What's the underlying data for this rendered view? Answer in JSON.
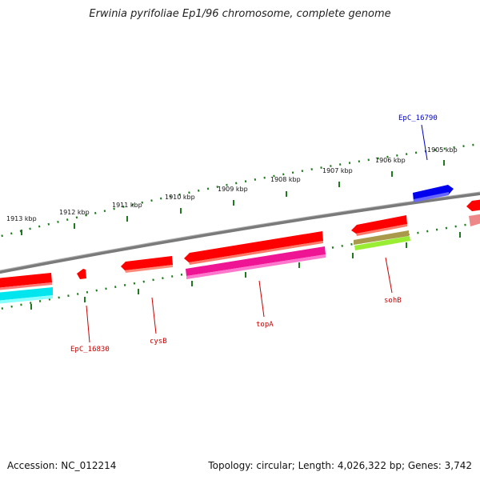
{
  "title": "Erwinia pyrifoliae Ep1/96 chromosome, complete genome",
  "footer": {
    "accession": "Accession: NC_012214",
    "topology": "Topology: circular; Length: 4,026,322 bp; Genes: 3,742"
  },
  "ticks": [
    {
      "label": "1913 kbp"
    },
    {
      "label": "1912 kbp"
    },
    {
      "label": "1911 kbp"
    },
    {
      "label": "1910 kbp"
    },
    {
      "label": "1909 kbp"
    },
    {
      "label": "1908 kbp"
    },
    {
      "label": "1907 kbp"
    },
    {
      "label": "1906 kbp"
    },
    {
      "label": "1905 kbp"
    }
  ],
  "gene_labels": [
    {
      "text": "EpC_16790",
      "color": "#0000cc"
    },
    {
      "text": "EpC_16830",
      "color": "#cc0000"
    },
    {
      "text": "cysB",
      "color": "#cc0000"
    },
    {
      "text": "topA",
      "color": "#cc0000"
    },
    {
      "text": "sohB",
      "color": "#cc0000"
    }
  ],
  "colors": {
    "backbone": "#808080",
    "tick": "#1f7a1f",
    "gene_forward": "#ff0000",
    "gene_reverse_blue": "#0000ee",
    "cyan_feature": "#00e5ee",
    "magenta_feature": "#ee1493",
    "olive_feature": "#a89a4a",
    "lime_feature": "#99ee33"
  }
}
